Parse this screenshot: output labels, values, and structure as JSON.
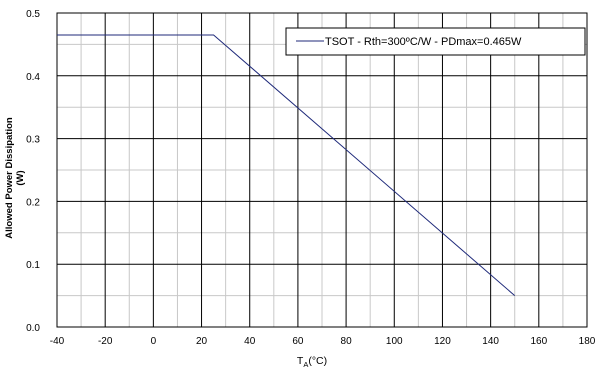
{
  "chart_data": {
    "type": "line",
    "title": "",
    "xlabel_main": "T",
    "xlabel_sub": "A",
    "xlabel_unit": "(°C)",
    "ylabel_line1": "Allowed Power Dissipation",
    "ylabel_line2": "(W)",
    "xlim": [
      -40,
      180
    ],
    "ylim": [
      0,
      0.5
    ],
    "x_ticks": [
      -40,
      -20,
      0,
      20,
      40,
      60,
      80,
      100,
      120,
      140,
      160,
      180
    ],
    "x_tick_labels": [
      "-40",
      "-20",
      "0",
      "20",
      "40",
      "60",
      "80",
      "100",
      "120",
      "140",
      "160",
      "180"
    ],
    "y_ticks": [
      0,
      0.1,
      0.2,
      0.3,
      0.4,
      0.5
    ],
    "y_tick_labels": [
      "0.0",
      "0.1",
      "0.2",
      "0.3",
      "0.4",
      "0.5"
    ],
    "grid": true,
    "minor_grid": true,
    "legend_position": "top-right",
    "series": [
      {
        "name": "TSOT - Rth=300ºC/W - PDmax=0.465W",
        "color": "#1f2a7a",
        "x": [
          -40,
          25,
          150
        ],
        "y": [
          0.465,
          0.465,
          0.05
        ]
      }
    ]
  }
}
